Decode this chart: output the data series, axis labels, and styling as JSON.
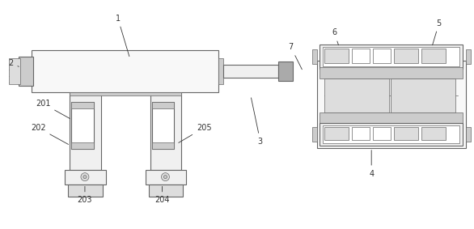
{
  "figsize": [
    5.86,
    2.83
  ],
  "dpi": 100,
  "lc": "#666666",
  "lc2": "#999999",
  "fc_white": "#ffffff",
  "fc_light": "#f0f0f0",
  "fc_mid": "#dddddd",
  "fc_gray": "#cccccc",
  "fc_dark": "#aaaaaa",
  "fc_vlight": "#f8f8f8",
  "label_color": "#333333",
  "label_fs": 7.0
}
